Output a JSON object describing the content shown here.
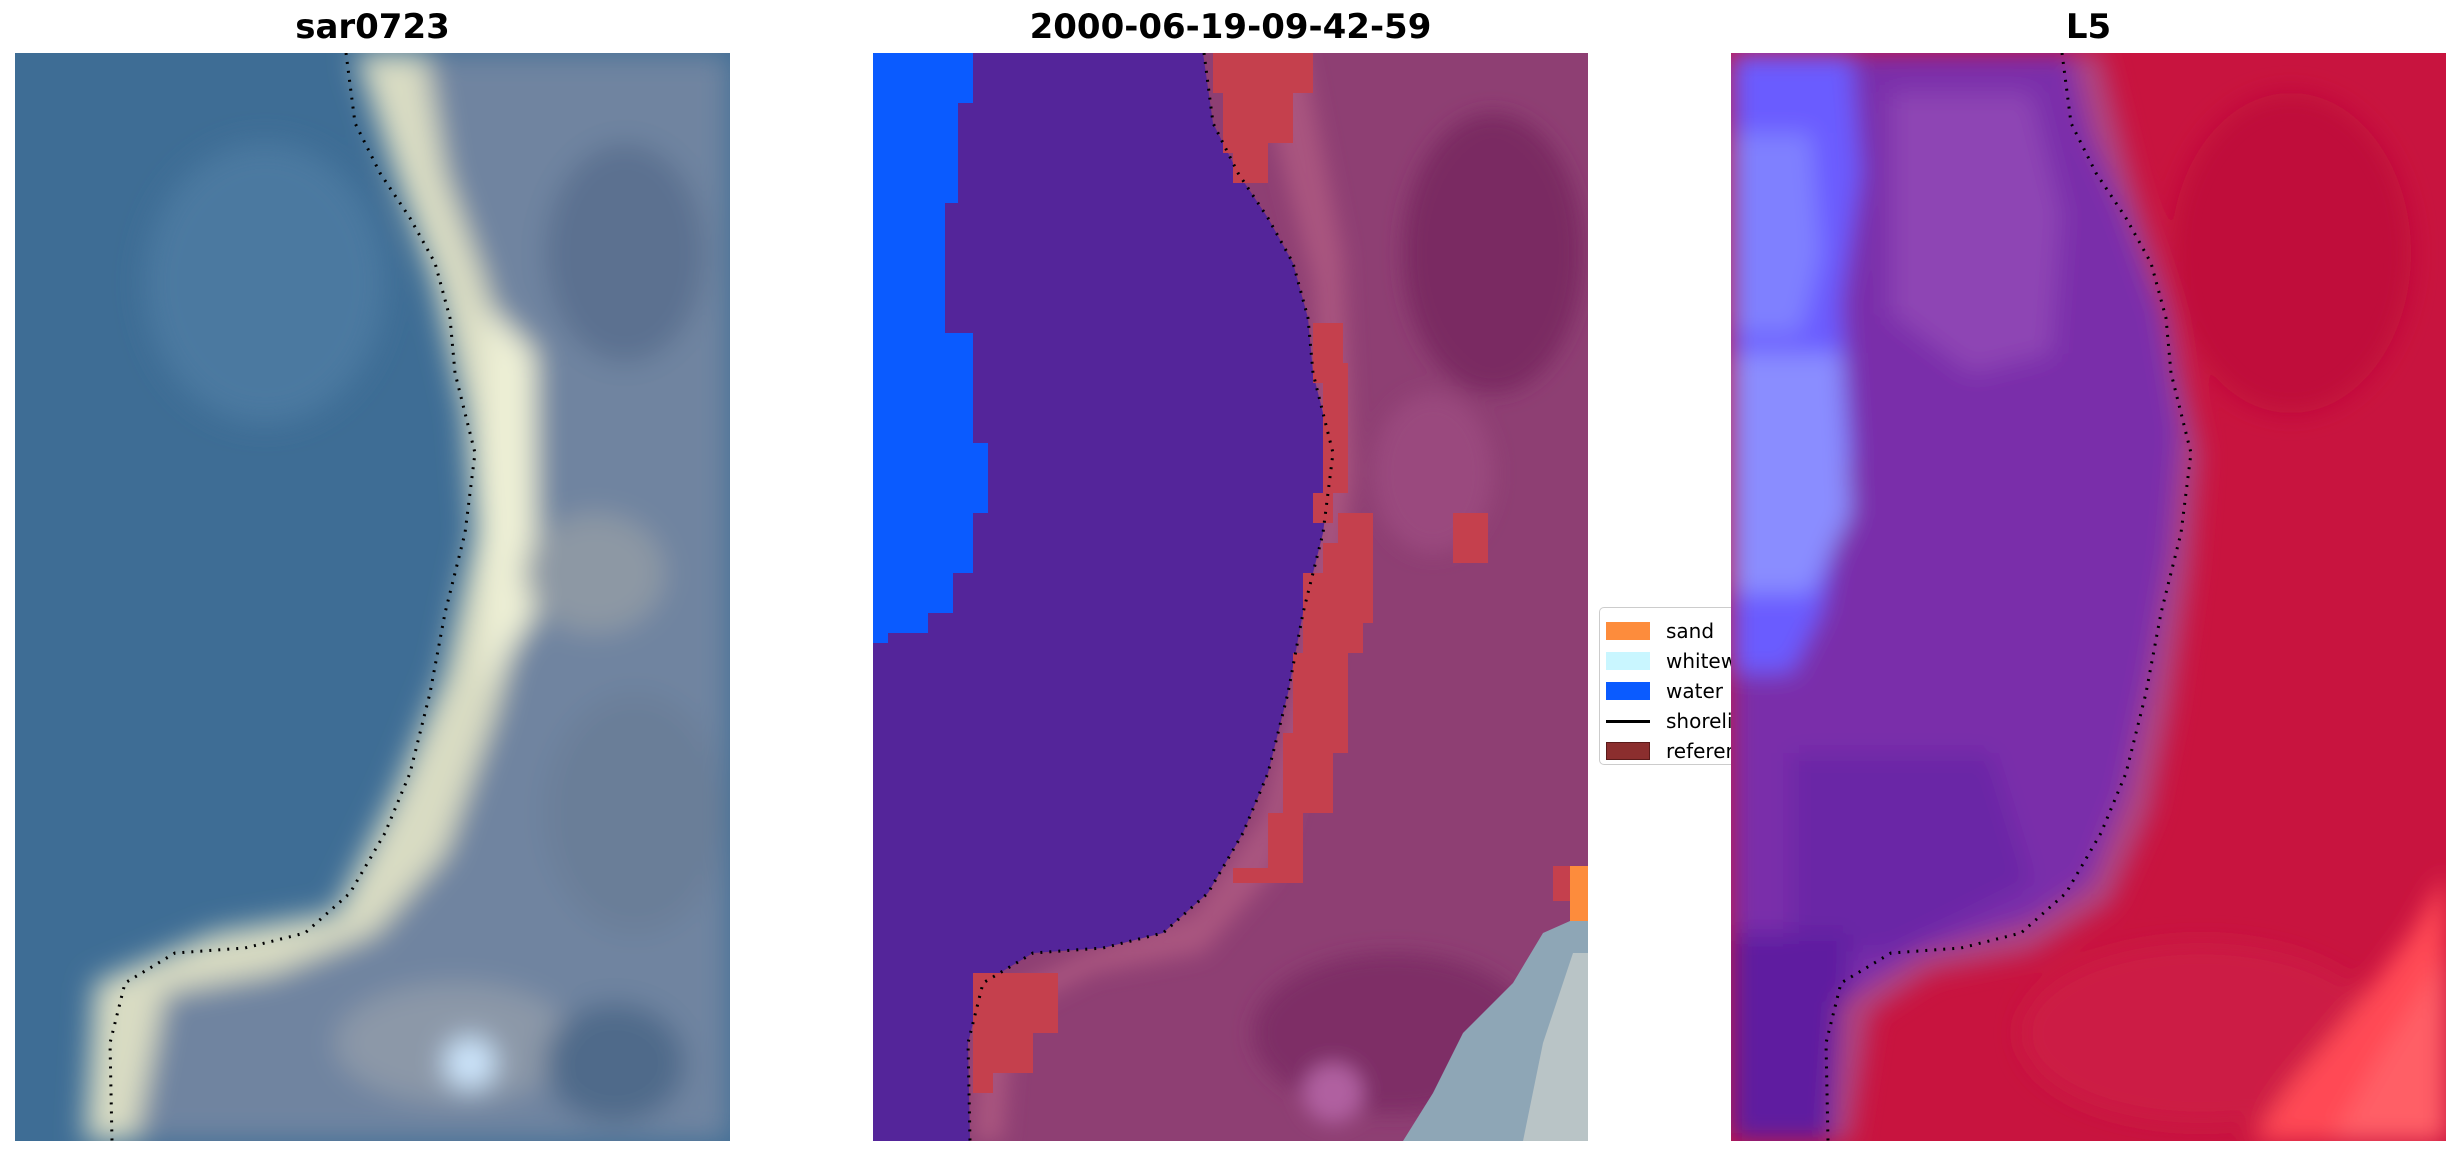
{
  "panels": [
    {
      "title": "sar0723"
    },
    {
      "title": "2000-06-19-09-42-59"
    },
    {
      "title": "L5"
    }
  ],
  "legend": {
    "items": [
      {
        "label": "sand",
        "color": "#fd8c3c"
      },
      {
        "label": "whitewater",
        "color": "#c9f6ff"
      },
      {
        "label": "water",
        "color": "#0a5bff"
      },
      {
        "label": "shoreline",
        "color": "#000000"
      },
      {
        "label": "reference",
        "color": "#8b2e2e"
      }
    ]
  },
  "colors": {
    "classified_water_body": "#54259a",
    "classified_land": "#8e3f73",
    "reference_band": "#c5404d",
    "l5_sea": "#7a2faa",
    "l5_land": "#c8143f"
  }
}
